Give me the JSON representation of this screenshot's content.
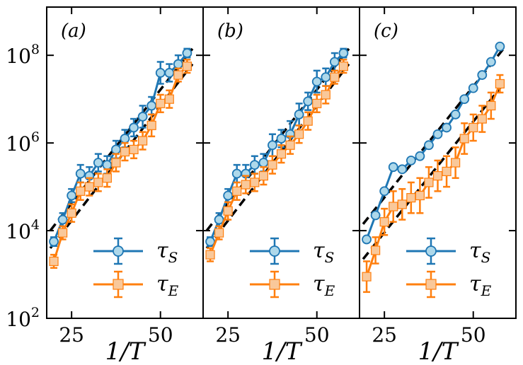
{
  "chart_data": {
    "type": "line",
    "shared": {
      "xlabel": "1/T",
      "xticks": [
        "25",
        "50"
      ],
      "xtick_values": [
        25,
        50
      ],
      "ylabel": "",
      "yscale": "log",
      "yticks": [
        "10^2",
        "10^4",
        "10^6",
        "10^8"
      ],
      "ytick_values": [
        100,
        10000,
        1000000,
        100000000
      ],
      "xlim": [
        18,
        62
      ],
      "ylim_log10": [
        2,
        9.1
      ],
      "colors": {
        "tau_S": "#1f77b4",
        "tau_S_fill": "#aed8ea",
        "tau_E": "#ff7f0e",
        "tau_E_fill": "#f9c89a",
        "fit": "#000000"
      },
      "legend_loc": "lower-right"
    },
    "panels": [
      {
        "label": "(a)",
        "x": [
          20,
          22.5,
          25,
          27.5,
          30,
          32.5,
          35,
          37.5,
          40,
          42.5,
          45,
          47.5,
          50,
          52.5,
          55,
          57.5
        ],
        "series": [
          {
            "name": "τ_S",
            "marker": "circle",
            "log10_values": [
              3.75,
              4.25,
              4.8,
              5.3,
              5.25,
              5.55,
              5.5,
              5.85,
              6.1,
              6.35,
              6.6,
              6.85,
              7.6,
              7.6,
              7.8,
              8.05
            ],
            "log10_err": [
              0.1,
              0.15,
              0.15,
              0.2,
              0.2,
              0.2,
              0.2,
              0.2,
              0.2,
              0.2,
              0.25,
              0.2,
              0.25,
              0.2,
              0.2,
              0.1
            ]
          },
          {
            "name": "τ_E",
            "marker": "square",
            "log10_values": [
              3.3,
              3.95,
              4.4,
              4.9,
              5.0,
              5.1,
              5.2,
              5.55,
              5.8,
              5.85,
              6.05,
              6.4,
              6.9,
              7.0,
              7.55,
              7.75
            ],
            "log10_err": [
              0.15,
              0.15,
              0.2,
              0.2,
              0.2,
              0.2,
              0.2,
              0.2,
              0.2,
              0.2,
              0.2,
              0.25,
              0.2,
              0.2,
              0.15,
              0.15
            ]
          }
        ],
        "fits": [
          {
            "x": [
              19,
              59
            ],
            "log10_y": [
              4.0,
              8.15
            ]
          },
          {
            "x": [
              19,
              59
            ],
            "log10_y": [
              3.6,
              7.8
            ]
          }
        ]
      },
      {
        "label": "(b)",
        "x": [
          20,
          22.5,
          25,
          27.5,
          30,
          32.5,
          35,
          37.5,
          40,
          42.5,
          45,
          47.5,
          50,
          52.5,
          55,
          57.5
        ],
        "series": [
          {
            "name": "τ_S",
            "marker": "circle",
            "log10_values": [
              3.75,
              4.25,
              4.8,
              5.3,
              5.3,
              5.5,
              5.55,
              5.95,
              6.1,
              6.2,
              6.65,
              6.95,
              7.4,
              7.5,
              7.85,
              8.05
            ],
            "log10_err": [
              0.1,
              0.15,
              0.15,
              0.2,
              0.2,
              0.2,
              0.2,
              0.25,
              0.2,
              0.3,
              0.25,
              0.2,
              0.25,
              0.2,
              0.2,
              0.1
            ]
          },
          {
            "name": "τ_E",
            "marker": "square",
            "log10_values": [
              3.45,
              3.95,
              4.45,
              4.9,
              5.05,
              5.1,
              5.25,
              5.5,
              5.75,
              5.95,
              6.2,
              6.5,
              6.9,
              7.1,
              7.5,
              7.75
            ],
            "log10_err": [
              0.15,
              0.15,
              0.2,
              0.2,
              0.2,
              0.2,
              0.2,
              0.2,
              0.2,
              0.2,
              0.2,
              0.2,
              0.2,
              0.2,
              0.15,
              0.15
            ]
          }
        ],
        "fits": [
          {
            "x": [
              19,
              59
            ],
            "log10_y": [
              4.0,
              8.15
            ]
          },
          {
            "x": [
              19,
              59
            ],
            "log10_y": [
              3.6,
              7.8
            ]
          }
        ]
      },
      {
        "label": "(c)",
        "x": [
          20,
          22.5,
          25,
          27.5,
          30,
          32.5,
          35,
          37.5,
          40,
          42.5,
          45,
          47.5,
          50,
          52.5,
          55,
          57.5
        ],
        "series": [
          {
            "name": "τ_S",
            "marker": "circle",
            "log10_values": [
              3.8,
              4.35,
              4.9,
              5.45,
              5.4,
              5.6,
              5.7,
              5.95,
              6.2,
              6.35,
              6.65,
              7.0,
              7.25,
              7.55,
              7.85,
              8.2
            ],
            "log10_err": [
              0.03,
              0.03,
              0.03,
              0.03,
              0.03,
              0.03,
              0.03,
              0.03,
              0.03,
              0.03,
              0.03,
              0.03,
              0.03,
              0.03,
              0.03,
              0.03
            ]
          },
          {
            "name": "τ_E",
            "marker": "square",
            "log10_values": [
              2.95,
              3.55,
              4.2,
              4.55,
              4.6,
              4.75,
              4.8,
              5.1,
              5.25,
              5.35,
              5.55,
              6.1,
              6.35,
              6.55,
              6.85,
              7.35
            ],
            "log10_err": [
              0.35,
              0.3,
              0.3,
              0.35,
              0.35,
              0.35,
              0.4,
              0.35,
              0.35,
              0.35,
              0.35,
              0.35,
              0.3,
              0.3,
              0.3,
              0.2
            ]
          }
        ],
        "fits": [
          {
            "x": [
              19,
              59
            ],
            "log10_y": [
              4.15,
              8.2
            ]
          },
          {
            "x": [
              19,
              59
            ],
            "log10_y": [
              3.35,
              7.4
            ]
          }
        ]
      }
    ]
  }
}
